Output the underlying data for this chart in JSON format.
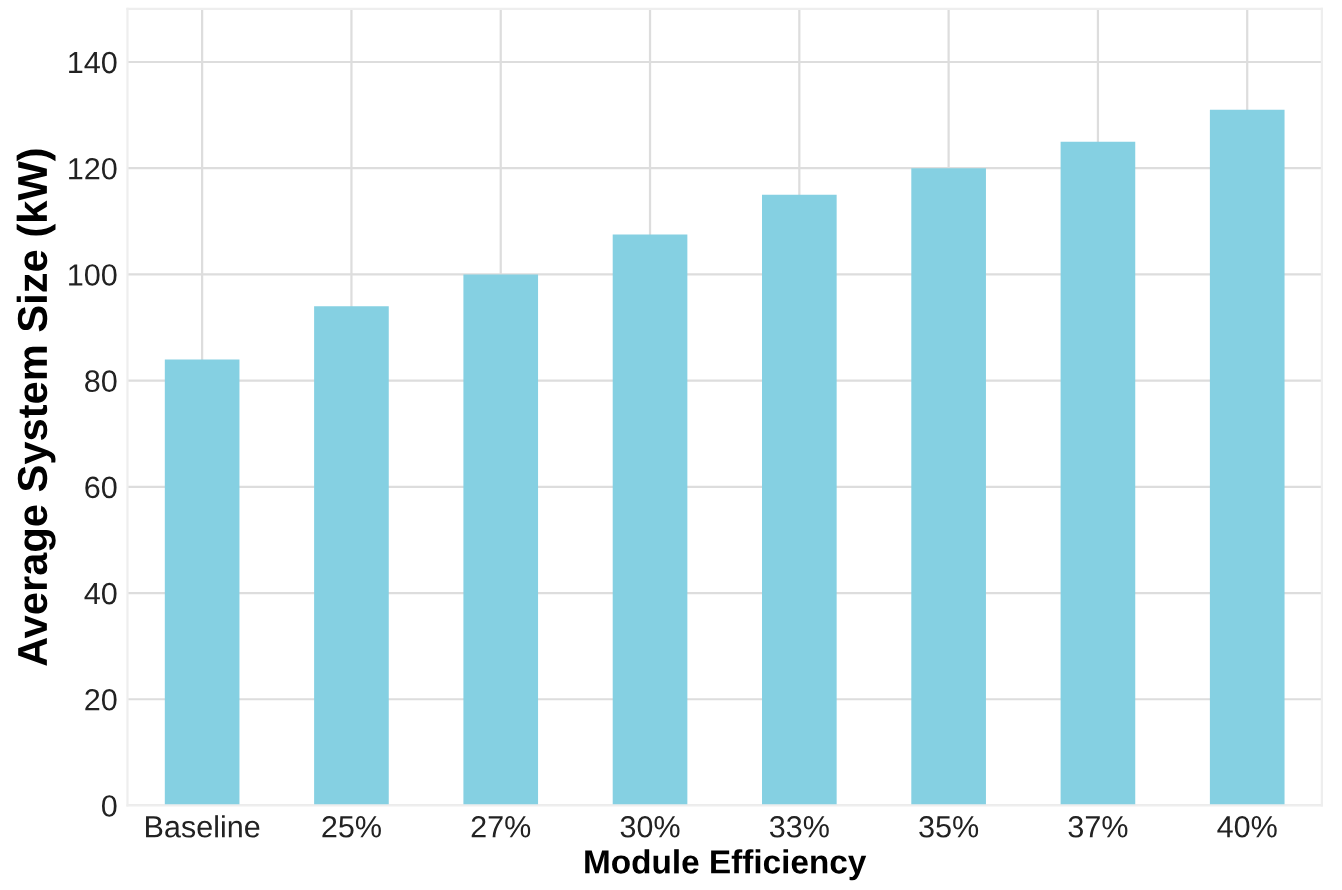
{
  "chart_data": {
    "type": "bar",
    "xlabel": "Module Efficiency",
    "ylabel": "Average System Size (kW)",
    "categories": [
      "Baseline",
      "25%",
      "27%",
      "30%",
      "33%",
      "35%",
      "37%",
      "40%"
    ],
    "values": [
      84,
      94,
      100,
      107.5,
      115,
      120,
      125,
      131
    ],
    "color": "#85d0e2",
    "ylim": [
      0,
      150
    ],
    "yticks": [
      0,
      20,
      40,
      60,
      80,
      100,
      120,
      140
    ],
    "grid": true
  }
}
